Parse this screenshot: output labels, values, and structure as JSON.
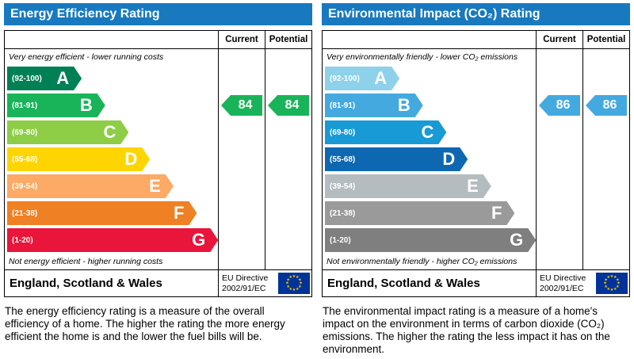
{
  "colors": {
    "header_bg": "#1879bf",
    "border": "#000000",
    "eu_flag_blue": "#003399",
    "eu_flag_star": "#ffcc00"
  },
  "chart_data": [
    {
      "type": "bar",
      "title": "Energy Efficiency Rating",
      "categories": [
        "A (92-100)",
        "B (81-91)",
        "C (69-80)",
        "D (55-68)",
        "E (39-54)",
        "F (21-38)",
        "G (1-20)"
      ],
      "series": [
        {
          "name": "Current",
          "values": [
            84
          ],
          "band": "B"
        },
        {
          "name": "Potential",
          "values": [
            84
          ],
          "band": "B"
        }
      ],
      "annotation_top": "Very energy efficient - lower running costs",
      "annotation_bottom": "Not energy efficient - higher running costs",
      "legend_position": "none",
      "xlim": [
        1,
        100
      ]
    },
    {
      "type": "bar",
      "title": "Environmental Impact (CO₂) Rating",
      "categories": [
        "A (92-100)",
        "B (81-91)",
        "C (69-80)",
        "D (55-68)",
        "E (39-54)",
        "F (21-38)",
        "G (1-20)"
      ],
      "series": [
        {
          "name": "Current",
          "values": [
            86
          ],
          "band": "B"
        },
        {
          "name": "Potential",
          "values": [
            86
          ],
          "band": "B"
        }
      ],
      "annotation_top": "Very environmentally friendly - lower CO₂ emissions",
      "annotation_bottom": "Not environmentally friendly - higher CO₂ emissions",
      "legend_position": "none",
      "xlim": [
        1,
        100
      ]
    }
  ],
  "panels": [
    {
      "title": "Energy Efficiency Rating",
      "columns": [
        "Current",
        "Potential"
      ],
      "top_note": "Very energy efficient - lower running costs",
      "bottom_note": "Not energy efficient - higher running costs",
      "bands": [
        {
          "letter": "A",
          "range": "(92-100)",
          "color": "#008054",
          "width": 35
        },
        {
          "letter": "B",
          "range": "(81-91)",
          "color": "#19b459",
          "width": 46
        },
        {
          "letter": "C",
          "range": "(69-80)",
          "color": "#8dce46",
          "width": 57
        },
        {
          "letter": "D",
          "range": "(55-68)",
          "color": "#ffd500",
          "width": 67
        },
        {
          "letter": "E",
          "range": "(39-54)",
          "color": "#fcaa65",
          "width": 78
        },
        {
          "letter": "F",
          "range": "(21-38)",
          "color": "#ef8023",
          "width": 89
        },
        {
          "letter": "G",
          "range": "(1-20)",
          "color": "#e9153b",
          "width": 99
        }
      ],
      "current": {
        "value": "84",
        "band_index": 1,
        "color": "#19b459"
      },
      "potential": {
        "value": "84",
        "band_index": 1,
        "color": "#19b459"
      },
      "footer": {
        "region": "England, Scotland & Wales",
        "directive_line1": "EU Directive",
        "directive_line2": "2002/91/EC"
      },
      "description": "The energy efficiency rating is a measure of the overall efficiency of a home. The higher the rating the more energy efficient the home is and the lower the fuel bills will be."
    },
    {
      "title": "Environmental Impact (CO₂) Rating",
      "columns": [
        "Current",
        "Potential"
      ],
      "top_note": "Very environmentally friendly - lower CO₂ emissions",
      "bottom_note": "Not environmentally friendly - higher CO₂ emissions",
      "bands": [
        {
          "letter": "A",
          "range": "(92-100)",
          "color": "#8ed1ea",
          "width": 35
        },
        {
          "letter": "B",
          "range": "(81-91)",
          "color": "#44a9df",
          "width": 46
        },
        {
          "letter": "C",
          "range": "(69-80)",
          "color": "#189ad7",
          "width": 57
        },
        {
          "letter": "D",
          "range": "(55-68)",
          "color": "#0d68b1",
          "width": 67
        },
        {
          "letter": "E",
          "range": "(39-54)",
          "color": "#b5bcc0",
          "width": 78
        },
        {
          "letter": "F",
          "range": "(21-38)",
          "color": "#9a9a9a",
          "width": 89
        },
        {
          "letter": "G",
          "range": "(1-20)",
          "color": "#7f7f7f",
          "width": 99
        }
      ],
      "current": {
        "value": "86",
        "band_index": 1,
        "color": "#44a9df"
      },
      "potential": {
        "value": "86",
        "band_index": 1,
        "color": "#44a9df"
      },
      "footer": {
        "region": "England, Scotland & Wales",
        "directive_line1": "EU Directive",
        "directive_line2": "2002/91/EC"
      },
      "description": "The environmental impact rating is a measure of a home's impact on the environment in terms of carbon dioxide (CO₂) emissions. The higher the rating the less impact it has on the environment."
    }
  ]
}
